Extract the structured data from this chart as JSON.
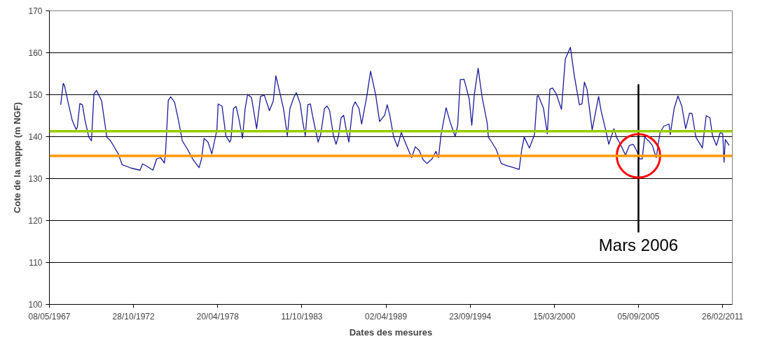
{
  "chart_data": {
    "type": "line",
    "xlabel": "Dates des mesures",
    "ylabel": "Cote de la nappe (m NGF)",
    "xlim": [
      "1967-05-08",
      "2011-10-15"
    ],
    "ylim": [
      100,
      170
    ],
    "xticks": [
      {
        "value": "1967-05-08",
        "label": "08/05/1967"
      },
      {
        "value": "1972-10-28",
        "label": "28/10/1972"
      },
      {
        "value": "1978-04-20",
        "label": "20/04/1978"
      },
      {
        "value": "1983-10-11",
        "label": "11/10/1983"
      },
      {
        "value": "1989-04-02",
        "label": "02/04/1989"
      },
      {
        "value": "1994-09-23",
        "label": "23/09/1994"
      },
      {
        "value": "2000-03-15",
        "label": "15/03/2000"
      },
      {
        "value": "2005-09-05",
        "label": "05/09/2005"
      },
      {
        "value": "2011-02-26",
        "label": "26/02/2011"
      }
    ],
    "yticks": [
      100,
      110,
      120,
      130,
      140,
      150,
      160,
      170
    ],
    "grid": "y",
    "marker": "none",
    "line_style": "solid",
    "ref_lines": [
      {
        "axis": "y",
        "value": 141.3,
        "label": null,
        "color": "#99cc00"
      },
      {
        "axis": "y",
        "value": 135.4,
        "label": null,
        "color": "#ff9900"
      },
      {
        "axis": "x",
        "value": "2005-09-05",
        "label": "Mars 2006",
        "color": "#000000"
      }
    ],
    "series": [
      {
        "color": "#1a1a99",
        "x": [
          "1968-02",
          "1968-04",
          "1968-05",
          "1968-08",
          "1968-11",
          "1969-02",
          "1969-03",
          "1969-05",
          "1969-07",
          "1969-09",
          "1969-12",
          "1970-02",
          "1970-04",
          "1970-06",
          "1970-10",
          "1971-02",
          "1971-05",
          "1971-11",
          "1972-02",
          "1972-09",
          "1973-04",
          "1973-06",
          "1973-09",
          "1974-02",
          "1974-05",
          "1974-08",
          "1974-11",
          "1974-12",
          "1975-02",
          "1975-04",
          "1975-07",
          "1975-10",
          "1976-01",
          "1976-05",
          "1976-09",
          "1977-02",
          "1977-04",
          "1977-06",
          "1977-09",
          "1977-12",
          "1978-04",
          "1978-05",
          "1978-08",
          "1978-11",
          "1979-02",
          "1979-03",
          "1979-05",
          "1979-07",
          "1979-09",
          "1979-12",
          "1980-02",
          "1980-04",
          "1980-07",
          "1980-11",
          "1981-02",
          "1981-05",
          "1981-09",
          "1981-12",
          "1982-02",
          "1982-05",
          "1982-08",
          "1982-11",
          "1983-01",
          "1983-04",
          "1983-06",
          "1983-09",
          "1983-11",
          "1984-01",
          "1984-03",
          "1984-05",
          "1984-07",
          "1984-11",
          "1985-01",
          "1985-04",
          "1985-06",
          "1985-08",
          "1985-11",
          "1986-01",
          "1986-03",
          "1986-05",
          "1986-07",
          "1986-09",
          "1986-11",
          "1987-02",
          "1987-04",
          "1987-07",
          "1987-09",
          "1988-01",
          "1988-04",
          "1988-05",
          "1988-08",
          "1988-11",
          "1989-03",
          "1989-05",
          "1989-07",
          "1989-10",
          "1990-01",
          "1990-04",
          "1990-07",
          "1990-12",
          "1991-03",
          "1991-06",
          "1991-09",
          "1991-12",
          "1992-04",
          "1992-07",
          "1992-09",
          "1992-11",
          "1993-03",
          "1993-06",
          "1993-10",
          "1993-12",
          "1994-02",
          "1994-05",
          "1994-09",
          "1994-11",
          "1995-01",
          "1995-04",
          "1995-07",
          "1995-11",
          "1995-12",
          "1996-03",
          "1996-06",
          "1996-10",
          "1997-02",
          "1997-07",
          "1997-12",
          "1998-02",
          "1998-04",
          "1998-08",
          "1998-12",
          "1999-02",
          "1999-03",
          "1999-07",
          "1999-10",
          "1999-12",
          "2000-02",
          "2000-05",
          "2000-09",
          "2000-12",
          "2001-04",
          "2001-07",
          "2001-11",
          "2002-01",
          "2002-03",
          "2002-05",
          "2002-09",
          "2003-02",
          "2003-04",
          "2003-08",
          "2003-10",
          "2004-02",
          "2004-04",
          "2004-07",
          "2004-11",
          "2005-02",
          "2005-05",
          "2005-08",
          "2005-10",
          "2005-12",
          "2006-02",
          "2006-06",
          "2006-08",
          "2006-11",
          "2007-02",
          "2007-05",
          "2007-09",
          "2007-10",
          "2008-01",
          "2008-04",
          "2008-07",
          "2008-10",
          "2009-01",
          "2009-03",
          "2009-06",
          "2009-11",
          "2010-02",
          "2010-05",
          "2010-07",
          "2010-10",
          "2011-01",
          "2011-03",
          "2011-04",
          "2011-05",
          "2011-08"
        ],
        "values": [
          147.6,
          152.7,
          152.2,
          147.9,
          143.9,
          141.7,
          142.2,
          147.9,
          147.6,
          143.9,
          139.9,
          139.0,
          150.2,
          151.0,
          148.5,
          139.9,
          139.0,
          135.9,
          133.3,
          132.5,
          132.0,
          133.5,
          133.0,
          132.0,
          134.7,
          135.0,
          133.7,
          136.7,
          148.7,
          149.5,
          148.2,
          143.9,
          139.0,
          137.0,
          134.7,
          132.6,
          134.7,
          139.6,
          138.7,
          135.9,
          141.6,
          147.8,
          147.3,
          140.2,
          138.7,
          139.3,
          146.7,
          147.2,
          144.5,
          139.6,
          146.7,
          150.1,
          149.3,
          141.9,
          149.6,
          149.9,
          146.2,
          148.5,
          154.5,
          150.7,
          146.7,
          140.2,
          146.7,
          149.3,
          150.5,
          147.9,
          143.6,
          140.2,
          147.6,
          147.8,
          144.5,
          138.7,
          140.5,
          146.7,
          147.3,
          146.2,
          140.2,
          138.2,
          140.2,
          144.5,
          145.1,
          141.6,
          138.7,
          147.0,
          148.3,
          146.7,
          143.0,
          149.6,
          155.6,
          154.2,
          149.9,
          143.6,
          145.1,
          147.6,
          145.1,
          139.9,
          137.6,
          141.0,
          138.7,
          135.0,
          137.6,
          136.7,
          134.5,
          133.6,
          134.7,
          136.5,
          135.0,
          140.5,
          146.9,
          143.6,
          140.0,
          142.7,
          153.6,
          153.7,
          149.0,
          142.7,
          150.1,
          156.3,
          149.6,
          143.3,
          139.9,
          138.5,
          137.0,
          133.6,
          133.1,
          132.7,
          132.2,
          137.0,
          139.9,
          137.3,
          140.5,
          149.6,
          149.8,
          146.8,
          140.7,
          151.3,
          151.6,
          150.2,
          146.5,
          158.5,
          161.3,
          154.7,
          147.6,
          147.8,
          153.0,
          151.3,
          141.6,
          149.6,
          146.2,
          141.0,
          138.2,
          141.9,
          139.9,
          138.2,
          135.6,
          137.9,
          138.2,
          136.5,
          134.7,
          134.7,
          139.9,
          138.7,
          137.9,
          135.0,
          141.0,
          142.5,
          143.0,
          140.5,
          146.7,
          149.7,
          147.3,
          141.9,
          145.6,
          145.5,
          139.9,
          137.3,
          145.0,
          144.5,
          140.2,
          137.9,
          141.0,
          140.7,
          133.9,
          139.3,
          137.9
        ]
      }
    ]
  }
}
